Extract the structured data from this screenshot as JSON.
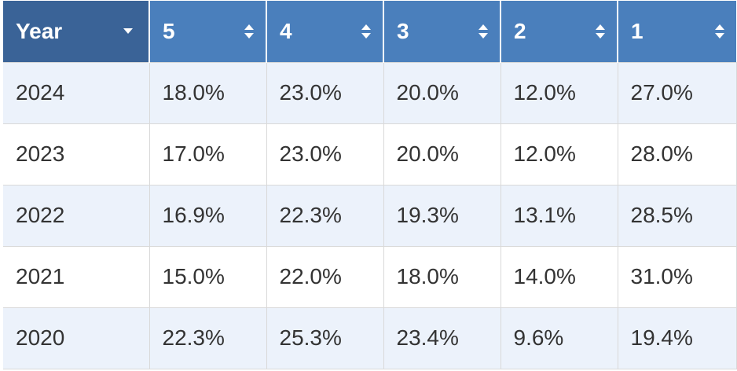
{
  "table": {
    "headers": [
      {
        "label": "Year",
        "icon": "dropdown-caret-icon"
      },
      {
        "label": "5",
        "icon": "sort-icon"
      },
      {
        "label": "4",
        "icon": "sort-icon"
      },
      {
        "label": "3",
        "icon": "sort-icon"
      },
      {
        "label": "2",
        "icon": "sort-icon"
      },
      {
        "label": "1",
        "icon": "sort-icon"
      }
    ],
    "rows": [
      [
        "2024",
        "18.0%",
        "23.0%",
        "20.0%",
        "12.0%",
        "27.0%"
      ],
      [
        "2023",
        "17.0%",
        "23.0%",
        "20.0%",
        "12.0%",
        "28.0%"
      ],
      [
        "2022",
        "16.9%",
        "22.3%",
        "19.3%",
        "13.1%",
        "28.5%"
      ],
      [
        "2021",
        "15.0%",
        "22.0%",
        "18.0%",
        "14.0%",
        "31.0%"
      ],
      [
        "2020",
        "22.3%",
        "25.3%",
        "23.4%",
        "9.6%",
        "19.4%"
      ]
    ]
  },
  "colors": {
    "header_bg": "#4a7fbc",
    "year_header_bg": "#3a6397",
    "row_alt_bg": "#ecf2fb",
    "row_bg": "#ffffff",
    "text": "#333333"
  }
}
